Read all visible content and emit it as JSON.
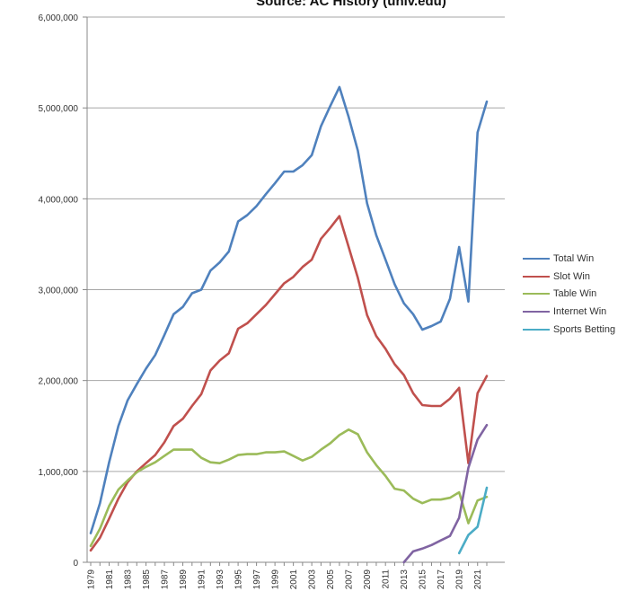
{
  "source_title": "Source: AC History (unlv.edu)",
  "chart_data": {
    "type": "line",
    "title": "Source: AC History (unlv.edu)",
    "xlabel": "",
    "ylabel": "",
    "ylim": [
      0,
      6000000
    ],
    "y_ticks": [
      "0",
      "1,000,000",
      "2,000,000",
      "3,000,000",
      "4,000,000",
      "5,000,000",
      "6,000,000"
    ],
    "y_tick_values": [
      0,
      1000000,
      2000000,
      3000000,
      4000000,
      5000000,
      6000000
    ],
    "x_ticks": [
      "1979",
      "1981",
      "1983",
      "1985",
      "1987",
      "1989",
      "1991",
      "1993",
      "1995",
      "1997",
      "1999",
      "2001",
      "2003",
      "2005",
      "2007",
      "2009",
      "2011",
      "2013",
      "2015",
      "2017",
      "2019",
      "2021"
    ],
    "x_tick_values": [
      1979,
      1981,
      1983,
      1985,
      1987,
      1989,
      1991,
      1993,
      1995,
      1997,
      1999,
      2001,
      2003,
      2005,
      2007,
      2009,
      2011,
      2013,
      2015,
      2017,
      2019,
      2021
    ],
    "xlim": [
      1979,
      2022
    ],
    "grid": "horizontal",
    "legend_position": "right",
    "x": [
      1979,
      1980,
      1981,
      1982,
      1983,
      1984,
      1985,
      1986,
      1987,
      1988,
      1989,
      1990,
      1991,
      1992,
      1993,
      1994,
      1995,
      1996,
      1997,
      1998,
      1999,
      2000,
      2001,
      2002,
      2003,
      2004,
      2005,
      2006,
      2007,
      2008,
      2009,
      2010,
      2011,
      2012,
      2013,
      2014,
      2015,
      2016,
      2017,
      2018,
      2019,
      2020,
      2021,
      2022
    ],
    "series": [
      {
        "name": "Total Win",
        "color": "#4f81bd",
        "values": [
          320000,
          650000,
          1100000,
          1500000,
          1780000,
          1960000,
          2130000,
          2280000,
          2500000,
          2730000,
          2810000,
          2960000,
          3000000,
          3210000,
          3300000,
          3420000,
          3750000,
          3820000,
          3920000,
          4050000,
          4170000,
          4300000,
          4300000,
          4370000,
          4480000,
          4800000,
          5020000,
          5230000,
          4900000,
          4530000,
          3950000,
          3600000,
          3330000,
          3060000,
          2850000,
          2730000,
          2560000,
          2600000,
          2650000,
          2900000,
          3470000,
          2870000,
          4730000,
          5070000
        ]
      },
      {
        "name": "Slot Win",
        "color": "#c0504d",
        "values": [
          130000,
          270000,
          480000,
          700000,
          880000,
          1000000,
          1090000,
          1180000,
          1320000,
          1500000,
          1580000,
          1720000,
          1850000,
          2110000,
          2220000,
          2300000,
          2570000,
          2630000,
          2730000,
          2830000,
          2950000,
          3070000,
          3140000,
          3250000,
          3330000,
          3560000,
          3680000,
          3810000,
          3470000,
          3130000,
          2720000,
          2490000,
          2350000,
          2180000,
          2060000,
          1860000,
          1730000,
          1720000,
          1720000,
          1800000,
          1920000,
          1090000,
          1860000,
          2050000
        ]
      },
      {
        "name": "Table Win",
        "color": "#9bbb59",
        "values": [
          180000,
          370000,
          620000,
          800000,
          900000,
          990000,
          1050000,
          1100000,
          1170000,
          1240000,
          1240000,
          1240000,
          1150000,
          1100000,
          1090000,
          1130000,
          1180000,
          1190000,
          1190000,
          1210000,
          1210000,
          1220000,
          1170000,
          1120000,
          1160000,
          1240000,
          1310000,
          1400000,
          1460000,
          1410000,
          1210000,
          1070000,
          950000,
          810000,
          790000,
          700000,
          650000,
          690000,
          690000,
          710000,
          770000,
          430000,
          680000,
          720000
        ]
      },
      {
        "name": "Internet Win",
        "color": "#8064a2",
        "values": [
          null,
          null,
          null,
          null,
          null,
          null,
          null,
          null,
          null,
          null,
          null,
          null,
          null,
          null,
          null,
          null,
          null,
          null,
          null,
          null,
          null,
          null,
          null,
          null,
          null,
          null,
          null,
          null,
          null,
          null,
          null,
          null,
          null,
          null,
          0,
          120000,
          150000,
          190000,
          240000,
          290000,
          490000,
          1040000,
          1350000,
          1510000
        ]
      },
      {
        "name": "Sports Betting",
        "color": "#4bacc6",
        "values": [
          null,
          null,
          null,
          null,
          null,
          null,
          null,
          null,
          null,
          null,
          null,
          null,
          null,
          null,
          null,
          null,
          null,
          null,
          null,
          null,
          null,
          null,
          null,
          null,
          null,
          null,
          null,
          null,
          null,
          null,
          null,
          null,
          null,
          null,
          null,
          null,
          null,
          null,
          null,
          null,
          100000,
          300000,
          390000,
          820000
        ]
      }
    ]
  }
}
